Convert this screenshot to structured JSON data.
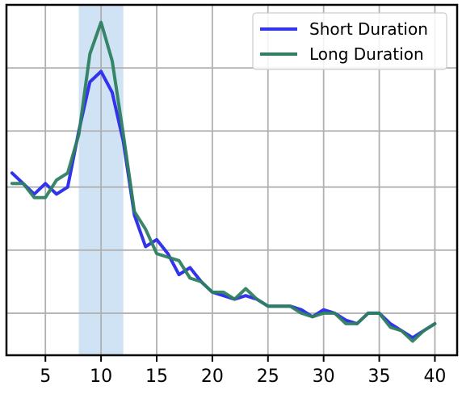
{
  "chart_data": {
    "type": "line",
    "title": "",
    "xlabel": "",
    "ylabel": "",
    "xlim": [
      1.5,
      42
    ],
    "ylim": [
      0,
      1
    ],
    "x_ticks": [
      5,
      10,
      15,
      20,
      25,
      30,
      35,
      40
    ],
    "y_gridlines": [
      0.12,
      0.3,
      0.48,
      0.64,
      0.82
    ],
    "grid": true,
    "legend_position": "top-right",
    "highlight_band": {
      "x_start": 8,
      "x_end": 12,
      "color": "#cfe3f5"
    },
    "x": [
      2,
      3,
      4,
      5,
      6,
      7,
      8,
      9,
      10,
      11,
      12,
      13,
      14,
      15,
      16,
      17,
      18,
      19,
      20,
      21,
      22,
      23,
      24,
      25,
      26,
      27,
      28,
      29,
      30,
      31,
      32,
      33,
      34,
      35,
      36,
      37,
      38,
      39,
      40
    ],
    "series": [
      {
        "name": "Short Duration",
        "color": "#3333ee",
        "values": [
          0.52,
          0.49,
          0.46,
          0.49,
          0.46,
          0.48,
          0.64,
          0.78,
          0.81,
          0.75,
          0.61,
          0.4,
          0.31,
          0.33,
          0.29,
          0.23,
          0.25,
          0.21,
          0.18,
          0.17,
          0.16,
          0.17,
          0.16,
          0.14,
          0.14,
          0.14,
          0.13,
          0.11,
          0.13,
          0.12,
          0.1,
          0.09,
          0.12,
          0.12,
          0.09,
          0.07,
          0.05,
          0.07,
          0.09
        ]
      },
      {
        "name": "Long Duration",
        "color": "#2e8060",
        "values": [
          0.49,
          0.49,
          0.45,
          0.45,
          0.5,
          0.52,
          0.63,
          0.86,
          0.95,
          0.84,
          0.63,
          0.41,
          0.36,
          0.29,
          0.28,
          0.27,
          0.22,
          0.21,
          0.18,
          0.18,
          0.16,
          0.19,
          0.16,
          0.14,
          0.14,
          0.14,
          0.12,
          0.11,
          0.12,
          0.12,
          0.09,
          0.09,
          0.12,
          0.12,
          0.08,
          0.07,
          0.04,
          0.07,
          0.09
        ]
      }
    ]
  }
}
